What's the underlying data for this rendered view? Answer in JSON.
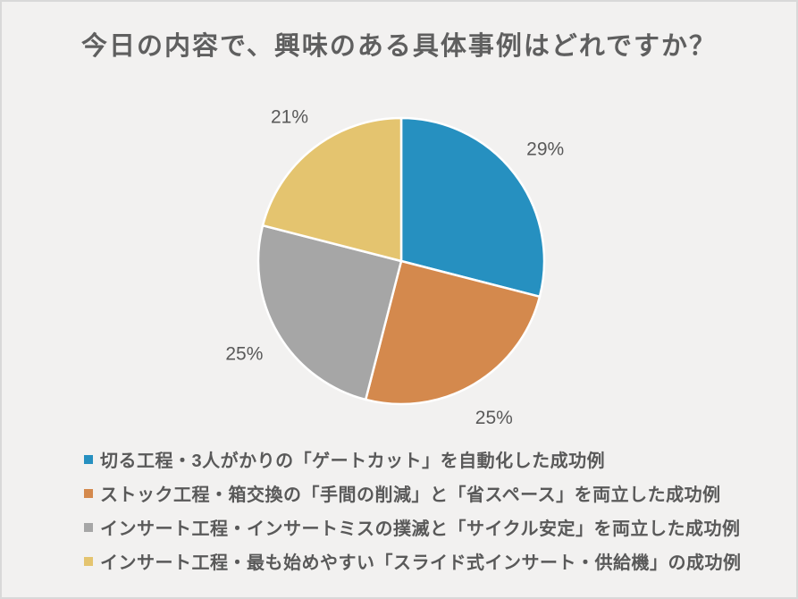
{
  "page": {
    "title": "今日の内容で、興味のある具体事例はどれですか？",
    "background_color": "#f2f1f0",
    "border_color": "#d9d9d9",
    "text_color": "#595959"
  },
  "chart_data": {
    "type": "pie",
    "title": "今日の内容で、興味のある具体事例はどれですか？",
    "values": [
      29,
      25,
      25,
      21
    ],
    "data_labels": [
      "29%",
      "25%",
      "25%",
      "21%"
    ],
    "colors": [
      "#2690c0",
      "#d4894d",
      "#a6a6a6",
      "#e4c46f"
    ],
    "start_angle_deg": 0,
    "direction": "clockwise",
    "slice_gap_color": "#ffffff",
    "legend_position": "bottom-left",
    "legend": [
      {
        "label": "切る工程・3人がかりの「ゲートカット」を自動化した成功例"
      },
      {
        "label": "ストック工程・箱交換の「手間の削減」と「省スペース」を両立した成功例"
      },
      {
        "label": "インサート工程・インサートミスの撲滅と「サイクル安定」を両立した成功例"
      },
      {
        "label": "インサート工程・最も始めやすい「スライド式インサート・供給機」の成功例"
      }
    ]
  }
}
